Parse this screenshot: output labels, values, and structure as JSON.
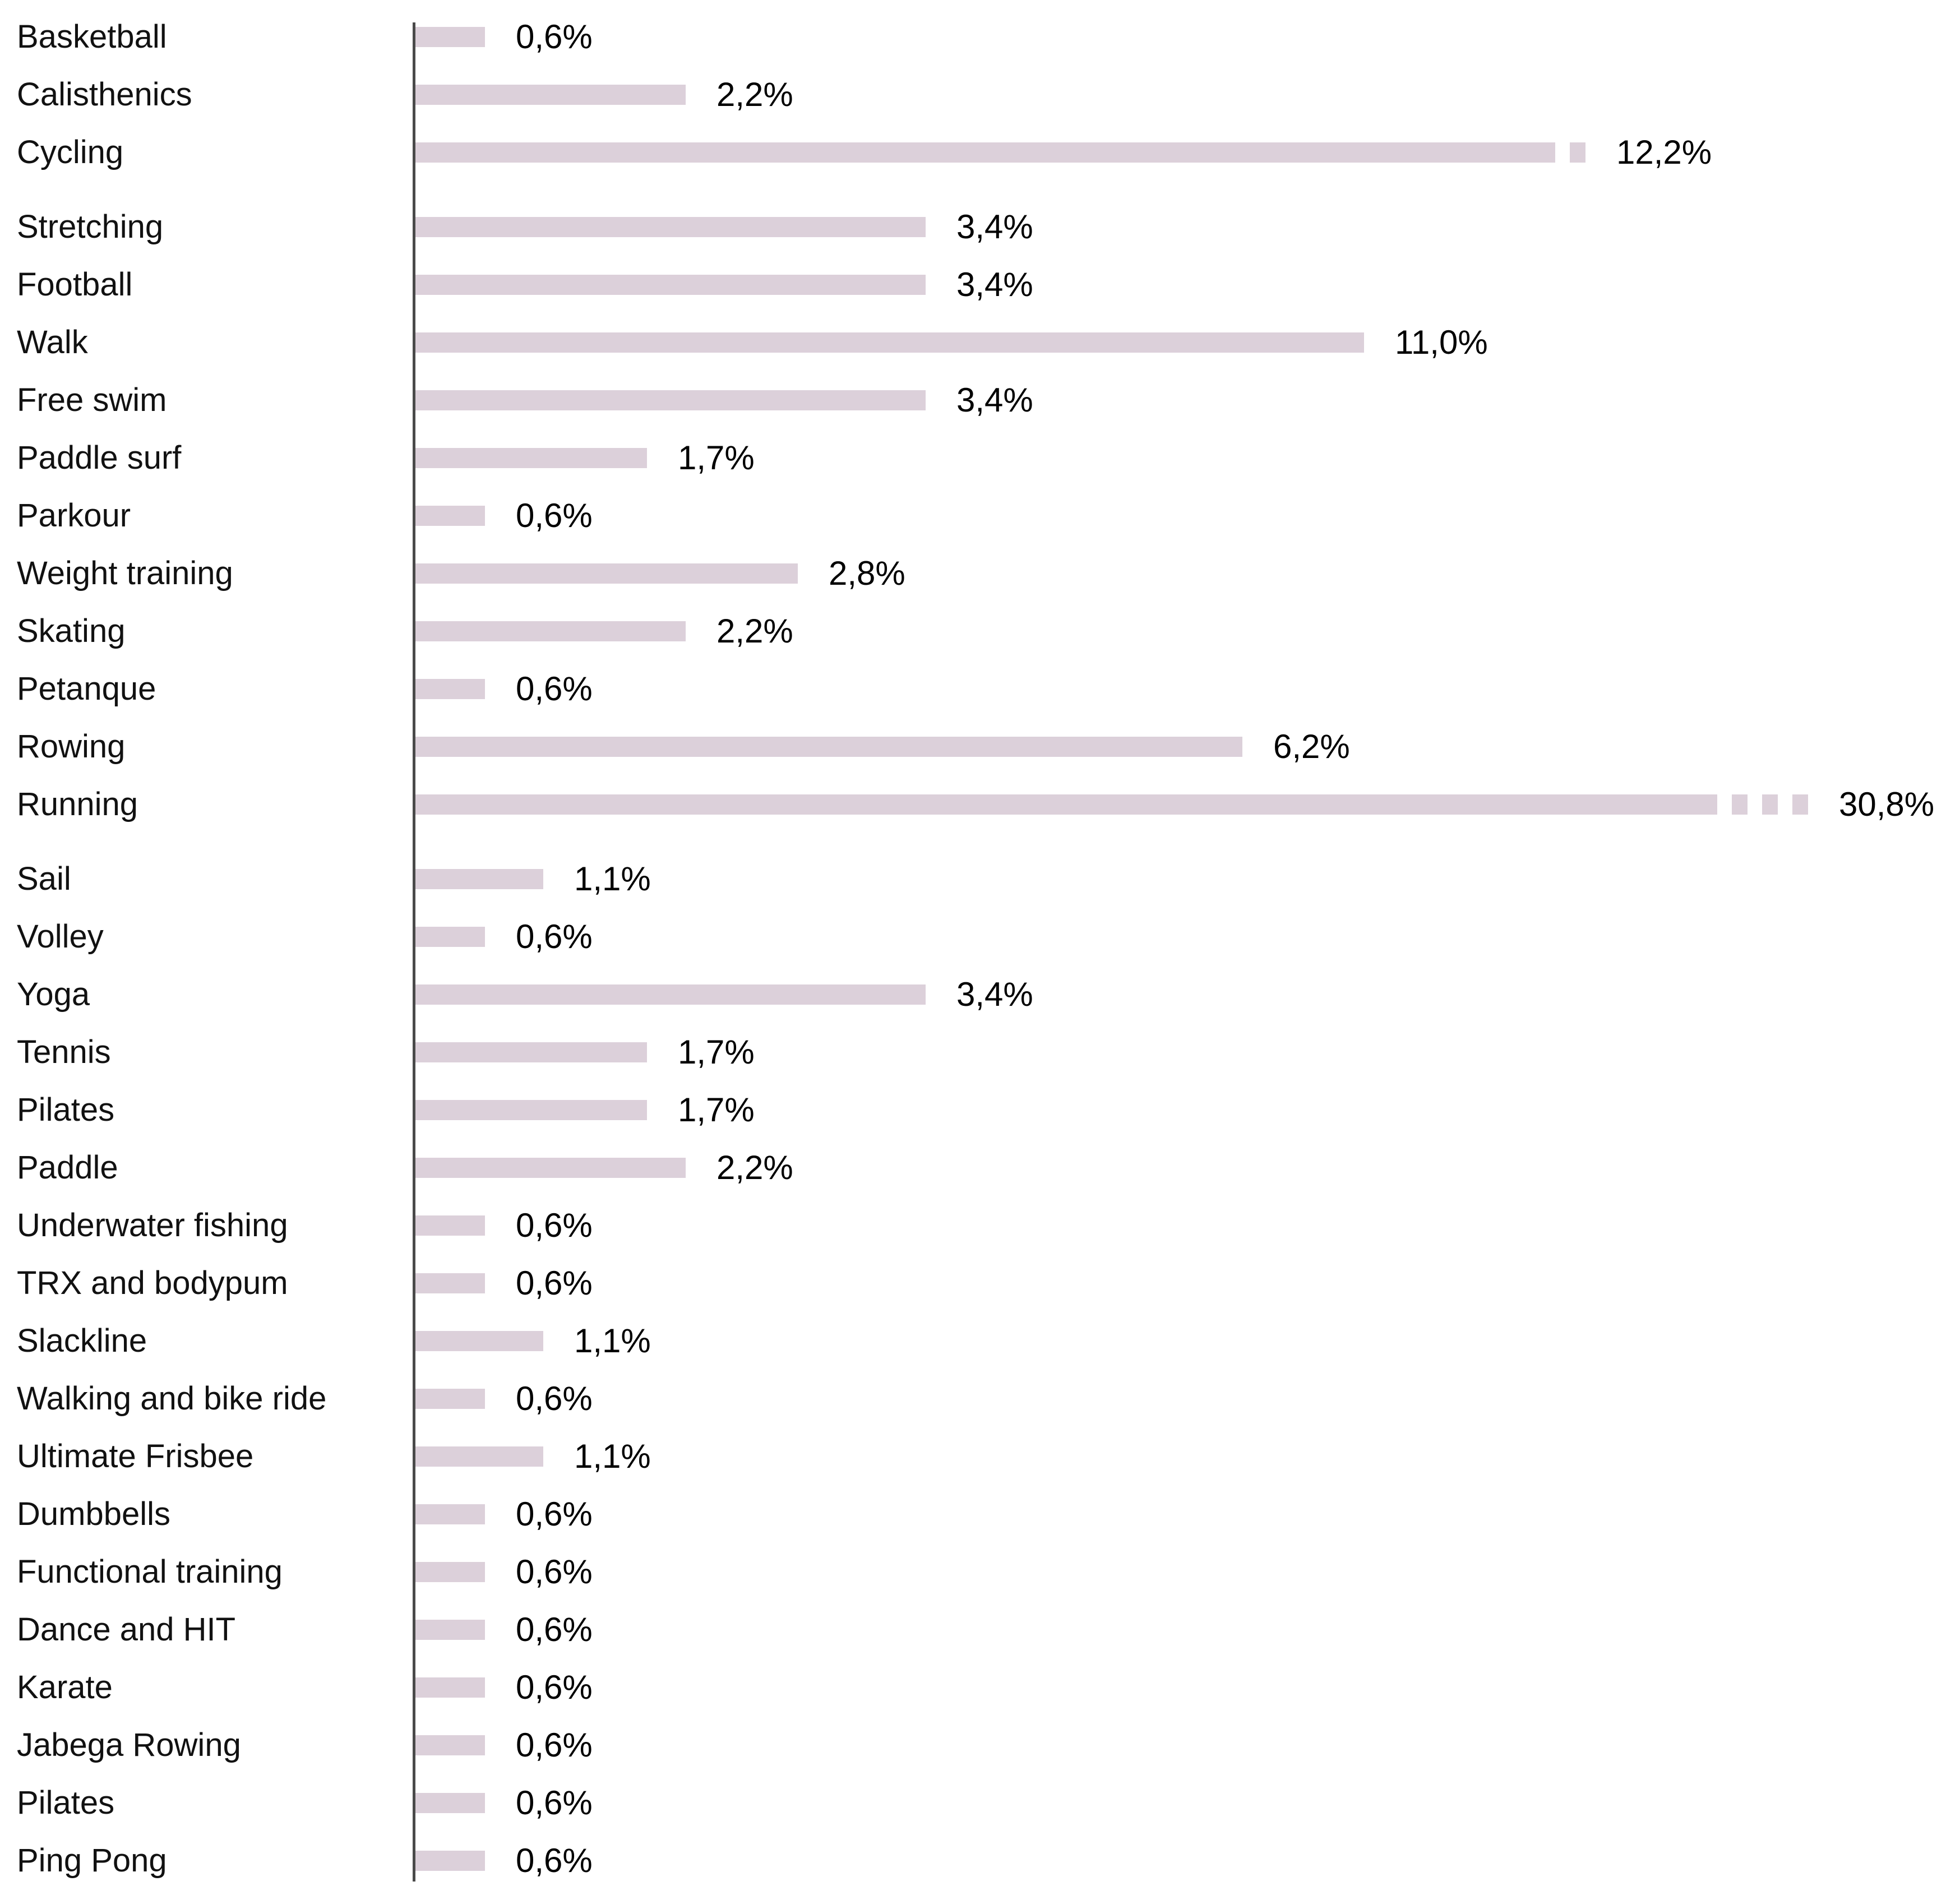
{
  "chart_data": {
    "type": "bar",
    "orientation": "horizontal",
    "title": "",
    "xlabel": "",
    "ylabel": "",
    "legend": "none",
    "grid": "off",
    "bar_color": "#dcd0da",
    "axis_line_color": "#4a4a4a",
    "text_color": "#000000",
    "value_format": "comma-decimal percent",
    "broken_bar_note": "Cycling and Running bars are truncated with break dash squares",
    "categories": [
      "Basketball",
      "Calisthenics",
      "Cycling",
      "Stretching",
      "Football",
      "Walk",
      "Free swim",
      "Paddle surf",
      "Parkour",
      "Weight training",
      "Skating",
      "Petanque",
      "Rowing",
      "Running",
      "Sail",
      "Volley",
      "Yoga",
      "Tennis",
      "Pilates",
      "Paddle",
      "Underwater fishing",
      "TRX and bodypum",
      "Slackline",
      "Walking and bike ride",
      "Ultimate Frisbee",
      "Dumbbells",
      "Functional training",
      "Dance and HIT",
      "Karate",
      "Jabega Rowing",
      "Pilates",
      "Ping Pong"
    ],
    "values": [
      0.6,
      2.2,
      12.2,
      3.4,
      3.4,
      11.0,
      3.4,
      1.7,
      0.6,
      2.8,
      2.2,
      0.6,
      6.2,
      30.8,
      1.1,
      0.6,
      3.4,
      1.7,
      1.7,
      2.2,
      0.6,
      0.6,
      1.1,
      0.6,
      1.1,
      0.6,
      0.6,
      0.6,
      0.6,
      0.6,
      0.6,
      0.6
    ],
    "rows": [
      {
        "label": "Basketball",
        "value": 0.6,
        "value_label": "0,6%",
        "break_dashes": 0,
        "gap_after": false
      },
      {
        "label": "Calisthenics",
        "value": 2.2,
        "value_label": "2,2%",
        "break_dashes": 0,
        "gap_after": false
      },
      {
        "label": "Cycling",
        "value": 12.2,
        "value_label": "12,2%",
        "break_dashes": 1,
        "gap_after": true
      },
      {
        "label": "Stretching",
        "value": 3.4,
        "value_label": "3,4%",
        "break_dashes": 0,
        "gap_after": false
      },
      {
        "label": "Football",
        "value": 3.4,
        "value_label": "3,4%",
        "break_dashes": 0,
        "gap_after": false
      },
      {
        "label": "Walk",
        "value": 11.0,
        "value_label": "11,0%",
        "break_dashes": 0,
        "gap_after": false
      },
      {
        "label": "Free swim",
        "value": 3.4,
        "value_label": "3,4%",
        "break_dashes": 0,
        "gap_after": false
      },
      {
        "label": "Paddle surf",
        "value": 1.7,
        "value_label": "1,7%",
        "break_dashes": 0,
        "gap_after": false
      },
      {
        "label": "Parkour",
        "value": 0.6,
        "value_label": "0,6%",
        "break_dashes": 0,
        "gap_after": false
      },
      {
        "label": "Weight training",
        "value": 2.8,
        "value_label": "2,8%",
        "break_dashes": 0,
        "gap_after": false
      },
      {
        "label": "Skating",
        "value": 2.2,
        "value_label": "2,2%",
        "break_dashes": 0,
        "gap_after": false
      },
      {
        "label": "Petanque",
        "value": 0.6,
        "value_label": "0,6%",
        "break_dashes": 0,
        "gap_after": false
      },
      {
        "label": "Rowing",
        "value": 6.2,
        "value_label": "6,2%",
        "break_dashes": 0,
        "gap_after": false
      },
      {
        "label": "Running",
        "value": 30.8,
        "value_label": "30,8%",
        "break_dashes": 3,
        "gap_after": true
      },
      {
        "label": "Sail",
        "value": 1.1,
        "value_label": "1,1%",
        "break_dashes": 0,
        "gap_after": false
      },
      {
        "label": "Volley",
        "value": 0.6,
        "value_label": "0,6%",
        "break_dashes": 0,
        "gap_after": false
      },
      {
        "label": "Yoga",
        "value": 3.4,
        "value_label": "3,4%",
        "break_dashes": 0,
        "gap_after": false
      },
      {
        "label": "Tennis",
        "value": 1.7,
        "value_label": "1,7%",
        "break_dashes": 0,
        "gap_after": false
      },
      {
        "label": "Pilates",
        "value": 1.7,
        "value_label": "1,7%",
        "break_dashes": 0,
        "gap_after": false
      },
      {
        "label": "Paddle",
        "value": 2.2,
        "value_label": "2,2%",
        "break_dashes": 0,
        "gap_after": false
      },
      {
        "label": "Underwater fishing",
        "value": 0.6,
        "value_label": "0,6%",
        "break_dashes": 0,
        "gap_after": false
      },
      {
        "label": "TRX and bodypum",
        "value": 0.6,
        "value_label": "0,6%",
        "break_dashes": 0,
        "gap_after": false
      },
      {
        "label": "Slackline",
        "value": 1.1,
        "value_label": "1,1%",
        "break_dashes": 0,
        "gap_after": false
      },
      {
        "label": "Walking and bike ride",
        "value": 0.6,
        "value_label": "0,6%",
        "break_dashes": 0,
        "gap_after": false
      },
      {
        "label": "Ultimate Frisbee",
        "value": 1.1,
        "value_label": "1,1%",
        "break_dashes": 0,
        "gap_after": false
      },
      {
        "label": "Dumbbells",
        "value": 0.6,
        "value_label": "0,6%",
        "break_dashes": 0,
        "gap_after": false
      },
      {
        "label": "Functional training",
        "value": 0.6,
        "value_label": "0,6%",
        "break_dashes": 0,
        "gap_after": false
      },
      {
        "label": "Dance and HIT",
        "value": 0.6,
        "value_label": "0,6%",
        "break_dashes": 0,
        "gap_after": false
      },
      {
        "label": "Karate",
        "value": 0.6,
        "value_label": "0,6%",
        "break_dashes": 0,
        "gap_after": false
      },
      {
        "label": "Jabega Rowing",
        "value": 0.6,
        "value_label": "0,6%",
        "break_dashes": 0,
        "gap_after": false
      },
      {
        "label": "Pilates",
        "value": 0.6,
        "value_label": "0,6%",
        "break_dashes": 0,
        "gap_after": false
      },
      {
        "label": "Ping Pong",
        "value": 0.6,
        "value_label": "0,6%",
        "break_dashes": 0,
        "gap_after": false
      }
    ]
  }
}
